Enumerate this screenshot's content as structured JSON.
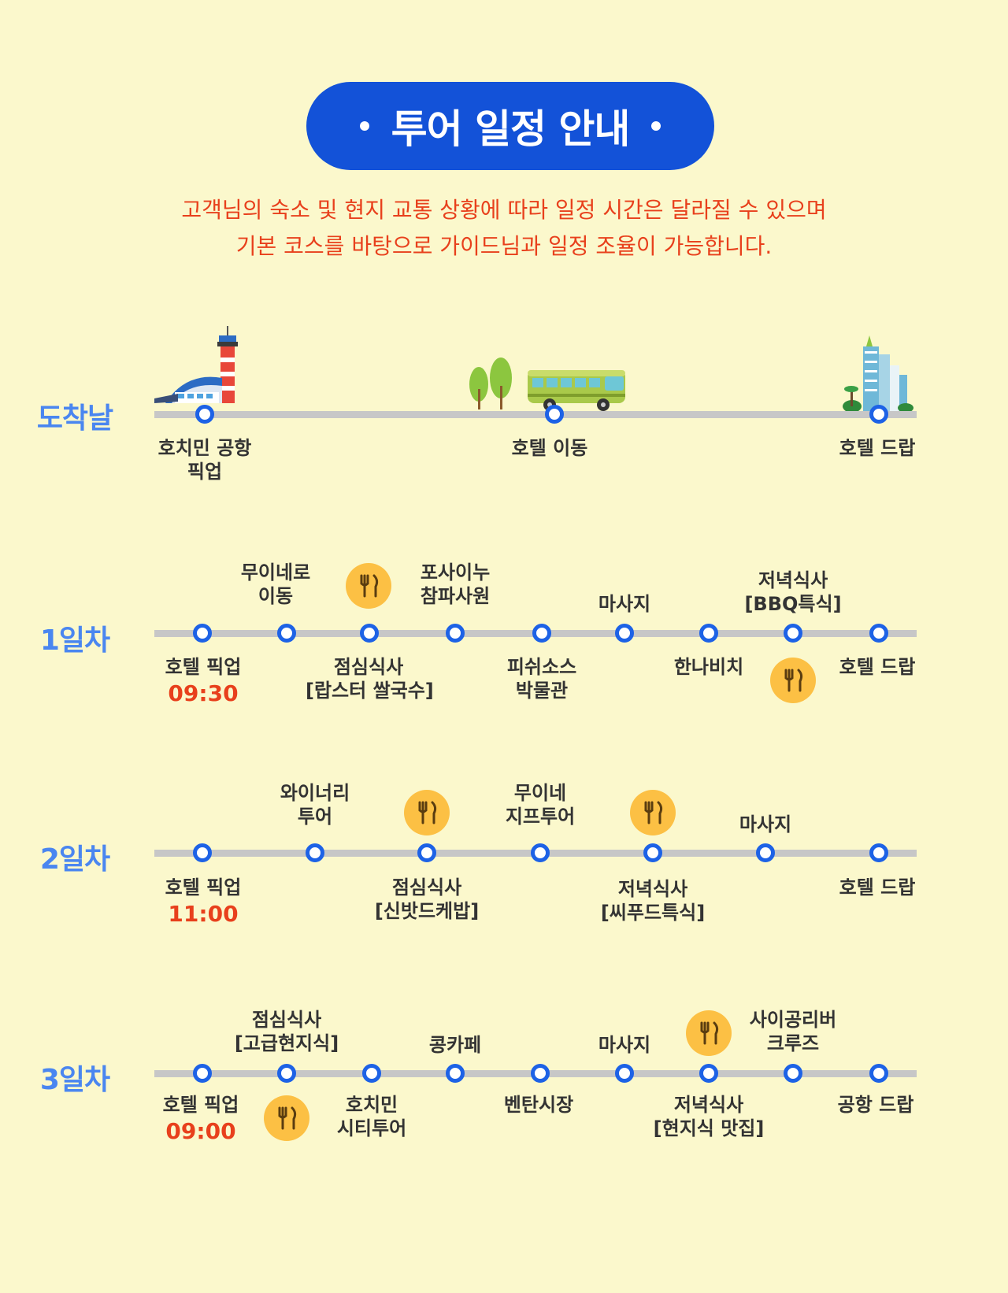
{
  "header": {
    "title": "투어 일정 안내"
  },
  "notice": {
    "line1": "고객님의 숙소 및 현지 교통 상황에 따라 일정 시간은 달라질 수 있으며",
    "line2": "기본 코스를 바탕으로 가이드님과 일정 조율이 가능합니다."
  },
  "arrival": {
    "label": "도착날",
    "stops": [
      {
        "line1": "호치민 공항",
        "line2": "픽업"
      },
      {
        "line1": "호텔 이동"
      },
      {
        "line1": "호텔 드랍"
      }
    ],
    "illustrations": [
      "airport-tower",
      "trees",
      "bus",
      "hotel-building"
    ]
  },
  "day1": {
    "label": "1일차",
    "stops": [
      {
        "line1": "호텔 픽업",
        "time": "09:30"
      },
      {
        "line1": "무이네로",
        "line2": "이동"
      },
      {
        "line1": "점심식사",
        "line2": "[랍스터 쌀국수]"
      },
      {
        "line1": "포사이누",
        "line2": "참파사원"
      },
      {
        "line1": "피쉬소스",
        "line2": "박물관"
      },
      {
        "line1": "마사지"
      },
      {
        "line1": "한나비치"
      },
      {
        "line1": "저녁식사",
        "line2": "[BBQ특식]"
      },
      {
        "line1": "호텔 드랍"
      }
    ]
  },
  "day2": {
    "label": "2일차",
    "stops": [
      {
        "line1": "호텔 픽업",
        "time": "11:00"
      },
      {
        "line1": "와이너리",
        "line2": "투어"
      },
      {
        "line1": "점심식사",
        "line2": "[신밧드케밥]"
      },
      {
        "line1": "무이네",
        "line2": "지프투어"
      },
      {
        "line1": "저녁식사",
        "line2": "[씨푸드특식]"
      },
      {
        "line1": "마사지"
      },
      {
        "line1": "호텔 드랍"
      }
    ]
  },
  "day3": {
    "label": "3일차",
    "stops": [
      {
        "line1": "호텔 픽업",
        "time": "09:00"
      },
      {
        "line1": "점심식사",
        "line2": "[고급현지식]"
      },
      {
        "line1": "호치민",
        "line2": "시티투어"
      },
      {
        "line1": "콩카페"
      },
      {
        "line1": "벤탄시장"
      },
      {
        "line1": "마사지"
      },
      {
        "line1": "저녁식사",
        "line2": "[현지식 맛집]"
      },
      {
        "line1": "사이공리버",
        "line2": "크루즈"
      },
      {
        "line1": "공항 드랍"
      }
    ]
  },
  "icons": {
    "meal": "fork-knife-icon"
  },
  "colors": {
    "title_bg": "#1352d8",
    "notice": "#e8401c",
    "day_label": "#4a86f0",
    "node": "#1d62e6",
    "meal_bg": "#fcc044",
    "background": "#fbf8cc"
  }
}
